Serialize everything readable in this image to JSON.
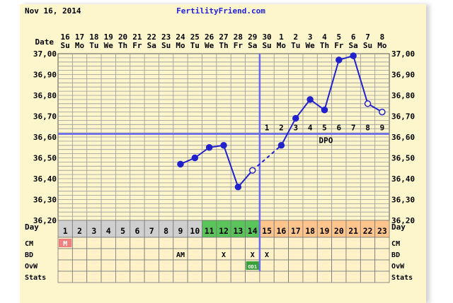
{
  "header": {
    "date": "Nov 16, 2014",
    "site": "FertilityFriend.com"
  },
  "labels": {
    "date": "Date",
    "day": "Day",
    "dpo": "DPO"
  },
  "colors": {
    "paper": "#fdf5cc",
    "grid": "#9a9a9a",
    "line": "#2222cc",
    "coverline": "#6a6af0",
    "site": "#2020dd",
    "day_menstrual": "#cfcfcf",
    "day_fertile": "#5ac35a",
    "day_luteal": "#ffc58c",
    "day_post": "#fff1c8",
    "menses": "#f08080",
    "ovw_marker": "#3aa03a"
  },
  "chart_data": {
    "type": "line",
    "title": "",
    "dates": [
      "16",
      "17",
      "18",
      "19",
      "20",
      "21",
      "22",
      "23",
      "24",
      "25",
      "26",
      "27",
      "28",
      "29",
      "30",
      "1",
      "2",
      "3",
      "4",
      "5",
      "6",
      "7",
      "8"
    ],
    "weekdays": [
      "Su",
      "Mo",
      "Tu",
      "We",
      "Th",
      "Fr",
      "Sa",
      "Su",
      "Mo",
      "Tu",
      "We",
      "Th",
      "Fr",
      "Sa",
      "Su",
      "Mo",
      "Tu",
      "We",
      "Th",
      "Fr",
      "Sa",
      "Su",
      "Mo"
    ],
    "cycle_days": [
      "1",
      "2",
      "3",
      "4",
      "5",
      "6",
      "7",
      "8",
      "9",
      "10",
      "11",
      "12",
      "13",
      "14",
      "15",
      "16",
      "17",
      "18",
      "19",
      "20",
      "21",
      "22",
      "23"
    ],
    "y_ticks": [
      "37,00",
      "36,90",
      "36,80",
      "36,70",
      "36,60",
      "36,50",
      "36,40",
      "36,30",
      "36,20"
    ],
    "ylim": [
      36.2,
      37.0
    ],
    "temperatures": [
      {
        "day": 9,
        "value": 36.47,
        "type": "filled"
      },
      {
        "day": 10,
        "value": 36.5,
        "type": "filled"
      },
      {
        "day": 11,
        "value": 36.55,
        "type": "filled"
      },
      {
        "day": 12,
        "value": 36.56,
        "type": "filled"
      },
      {
        "day": 13,
        "value": 36.36,
        "type": "filled"
      },
      {
        "day": 14,
        "value": 36.44,
        "type": "hollow"
      },
      {
        "day": 16,
        "value": 36.56,
        "type": "filled"
      },
      {
        "day": 17,
        "value": 36.69,
        "type": "filled"
      },
      {
        "day": 18,
        "value": 36.78,
        "type": "filled"
      },
      {
        "day": 19,
        "value": 36.73,
        "type": "filled"
      },
      {
        "day": 20,
        "value": 36.97,
        "type": "filled"
      },
      {
        "day": 21,
        "value": 36.99,
        "type": "filled"
      },
      {
        "day": 22,
        "value": 36.76,
        "type": "hollow"
      },
      {
        "day": 23,
        "value": 36.72,
        "type": "hollow"
      }
    ],
    "dashed_gap": [
      14,
      16
    ],
    "coverline": 36.615,
    "ovulation_day": 14,
    "dpo_numbers": [
      "1",
      "2",
      "3",
      "4",
      "5",
      "6",
      "7",
      "8",
      "9"
    ],
    "day_phases": [
      "menstrual",
      "menstrual",
      "menstrual",
      "menstrual",
      "menstrual",
      "menstrual",
      "menstrual",
      "menstrual",
      "menstrual",
      "menstrual",
      "fertile",
      "fertile",
      "fertile",
      "fertile",
      "luteal",
      "luteal",
      "luteal",
      "luteal",
      "luteal",
      "luteal",
      "luteal",
      "luteal",
      "luteal"
    ]
  },
  "rows": [
    {
      "label": "CM",
      "entries": [
        {
          "day": 1,
          "text": "M",
          "fill": "menses"
        }
      ]
    },
    {
      "label": "BD",
      "entries": [
        {
          "day": 9,
          "text": "AM"
        },
        {
          "day": 12,
          "text": "X"
        },
        {
          "day": 14,
          "text": "X"
        },
        {
          "day": 15,
          "text": "X"
        }
      ]
    },
    {
      "label": "OvW",
      "entries": [
        {
          "day": 14,
          "text": "OD1",
          "fill": "ovw_marker"
        }
      ]
    },
    {
      "label": "Stats",
      "entries": []
    }
  ]
}
